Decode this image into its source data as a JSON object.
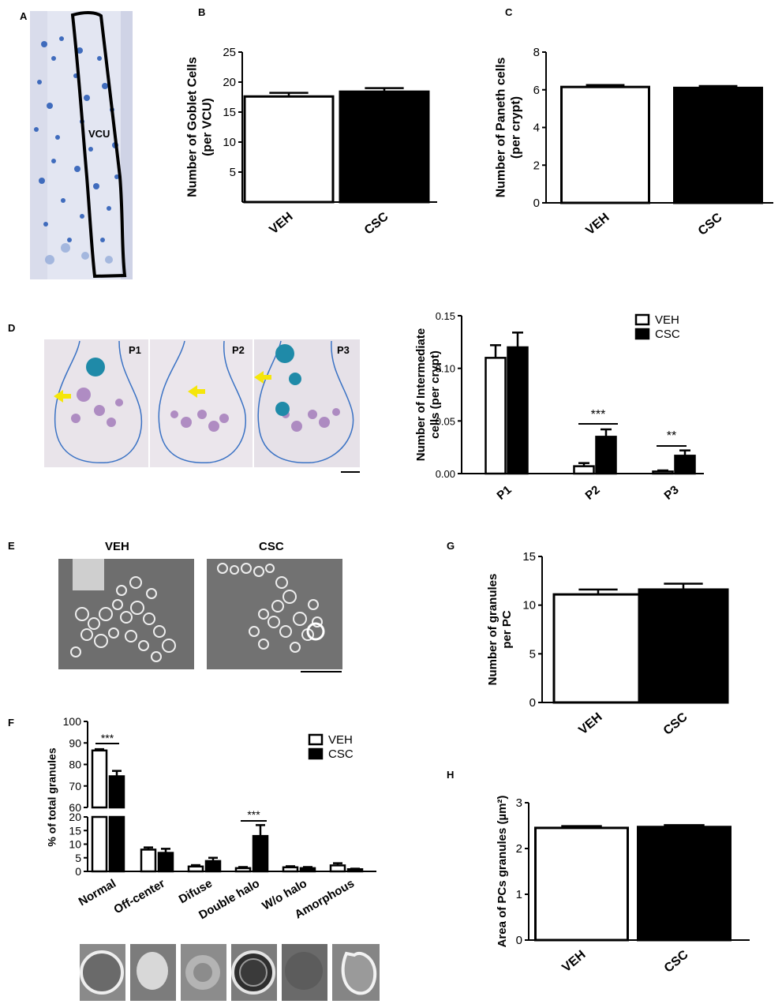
{
  "panels": {
    "A": "A",
    "B": "B",
    "C": "C",
    "D": "D",
    "E": "E",
    "F": "F",
    "G": "G",
    "H": "H"
  },
  "micrographs": {
    "a_label": "VCU",
    "d_labels": [
      "P1",
      "P2",
      "P3"
    ],
    "e_labels": [
      "VEH",
      "CSC"
    ]
  },
  "colors": {
    "veh_fill": "#ffffff",
    "csc_fill": "#000000",
    "tissue_blue": "#2f5fb8",
    "arrow_yellow": "#f5e60a",
    "outline_blue": "#3a72c4"
  },
  "chart_data": [
    {
      "id": "B",
      "type": "bar",
      "categories": [
        "VEH",
        "CSC"
      ],
      "values": [
        17.6,
        18.4
      ],
      "errors": [
        0.6,
        0.6
      ],
      "ylabel": "Number of Goblet Cells\n(per VCU)",
      "ylim": [
        0,
        25
      ],
      "yticks": [
        "5",
        "10",
        "15",
        "20",
        "25"
      ]
    },
    {
      "id": "C",
      "type": "bar",
      "categories": [
        "VEH",
        "CSC"
      ],
      "values": [
        6.15,
        6.1
      ],
      "errors": [
        0.1,
        0.1
      ],
      "ylabel": "Number of Paneth cells\n(per crypt)",
      "ylim": [
        0,
        8
      ],
      "yticks": [
        "0",
        "2",
        "4",
        "6",
        "8"
      ]
    },
    {
      "id": "D",
      "type": "bar",
      "categories": [
        "P1",
        "P2",
        "P3"
      ],
      "series": [
        {
          "name": "VEH",
          "values": [
            0.11,
            0.007,
            0.002
          ],
          "errors": [
            0.012,
            0.003,
            0.001
          ]
        },
        {
          "name": "CSC",
          "values": [
            0.12,
            0.035,
            0.017
          ],
          "errors": [
            0.014,
            0.007,
            0.005
          ]
        }
      ],
      "ylabel": "Number of Intermediate\ncells (per crypt)",
      "ylim": [
        0,
        0.15
      ],
      "yticks": [
        "0.00",
        "0.05",
        "0.10",
        "0.15"
      ],
      "significance": [
        {
          "category": "P2",
          "label": "***"
        },
        {
          "category": "P3",
          "label": "**"
        }
      ],
      "legend": "top-right"
    },
    {
      "id": "G",
      "type": "bar",
      "categories": [
        "VEH",
        "CSC"
      ],
      "values": [
        11.1,
        11.6
      ],
      "errors": [
        0.5,
        0.6
      ],
      "ylabel": "Number of granules\nper PC",
      "ylim": [
        0,
        15
      ],
      "yticks": [
        "0",
        "5",
        "10",
        "15"
      ]
    },
    {
      "id": "F",
      "type": "bar",
      "categories": [
        "Normal",
        "Off-center",
        "Difuse",
        "Double halo",
        "W/o halo",
        "Amorphous"
      ],
      "series": [
        {
          "name": "VEH",
          "values": [
            86.5,
            8.0,
            1.8,
            1.2,
            1.5,
            2.2
          ],
          "errors": [
            0.6,
            0.8,
            0.5,
            0.4,
            0.4,
            0.8
          ]
        },
        {
          "name": "CSC",
          "values": [
            74.5,
            6.8,
            3.8,
            13.0,
            1.2,
            0.8
          ],
          "errors": [
            2.5,
            1.5,
            1.2,
            4.0,
            0.4,
            0.2
          ]
        }
      ],
      "ylabel": "% of total granules",
      "ylim": [
        0,
        100
      ],
      "axis_break": [
        20,
        60
      ],
      "yticks": [
        "0",
        "5",
        "10",
        "15",
        "20",
        "60",
        "70",
        "80",
        "90",
        "100"
      ],
      "significance": [
        {
          "category": "Normal",
          "label": "***"
        },
        {
          "category": "Double halo",
          "label": "***"
        }
      ],
      "legend": "top-right"
    },
    {
      "id": "H",
      "type": "bar",
      "categories": [
        "VEH",
        "CSC"
      ],
      "values": [
        2.45,
        2.47
      ],
      "errors": [
        0.04,
        0.04
      ],
      "ylabel": "Area of PCs granules (µm²)",
      "ylim": [
        0,
        3
      ],
      "yticks": [
        "0",
        "1",
        "2",
        "3"
      ]
    }
  ]
}
